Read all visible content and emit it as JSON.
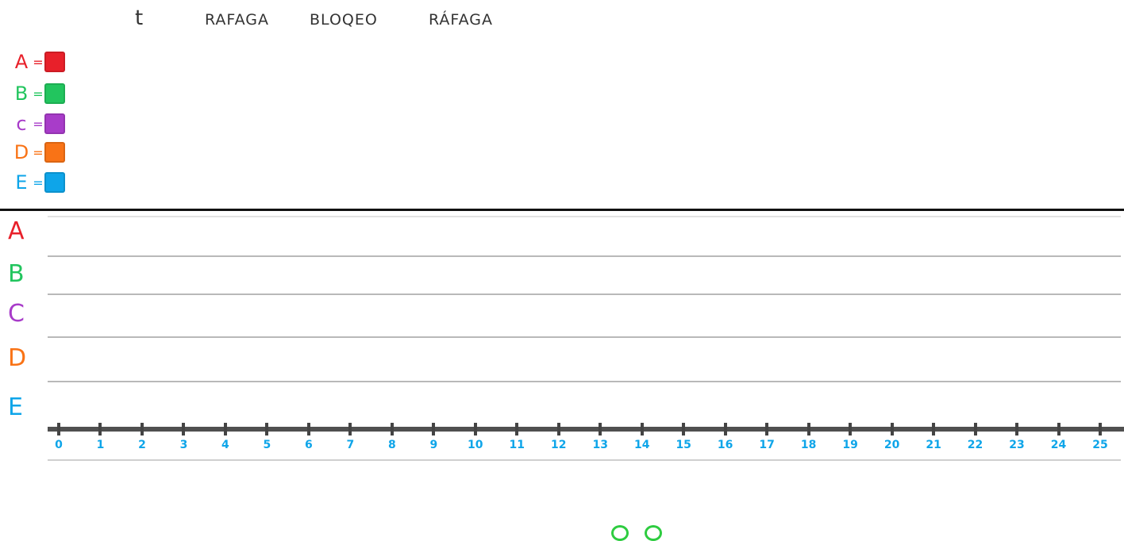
{
  "header": {
    "t": "t",
    "rafaga1": "RAFAGA",
    "bloqueo": "BLOQEO",
    "rafaga2": "RÁFAGA"
  },
  "legend": [
    {
      "letter": "A",
      "color": "#e8202a"
    },
    {
      "letter": "B",
      "color": "#22c55e"
    },
    {
      "letter": "c",
      "color": "#a83cc9"
    },
    {
      "letter": "D",
      "color": "#f97316"
    },
    {
      "letter": "E",
      "color": "#0ea5e9"
    }
  ],
  "rows": [
    {
      "label": "A",
      "color": "#e8202a"
    },
    {
      "label": "B",
      "color": "#22c55e"
    },
    {
      "label": "C",
      "color": "#a83cc9"
    },
    {
      "label": "D",
      "color": "#f97316"
    },
    {
      "label": "E",
      "color": "#0ea5e9"
    }
  ],
  "axis": {
    "tick_color": "#0ea5e9",
    "ticks": [
      "0",
      "1",
      "2",
      "3",
      "4",
      "5",
      "6",
      "7",
      "8",
      "9",
      "10",
      "11",
      "12",
      "13",
      "14",
      "15",
      "16",
      "17",
      "18",
      "19",
      "20",
      "21",
      "22",
      "23",
      "24",
      "25"
    ]
  }
}
